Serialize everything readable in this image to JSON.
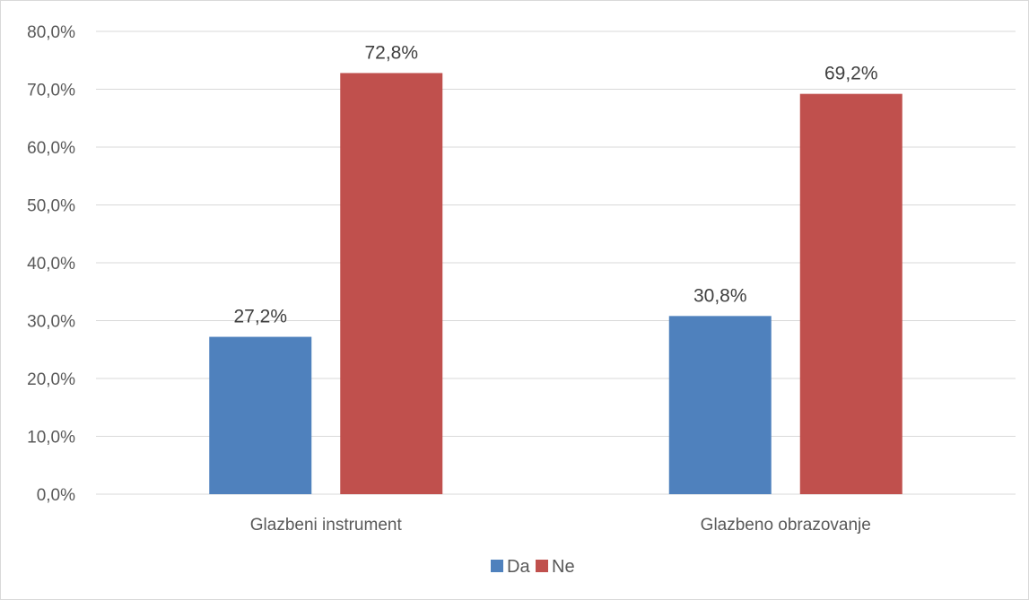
{
  "chart_data": {
    "type": "bar",
    "categories": [
      "Glazbeni instrument",
      "Glazbeno obrazovanje"
    ],
    "series": [
      {
        "name": "Da",
        "values": [
          27.2,
          30.8
        ],
        "labels": [
          "27,2%",
          "30,8%"
        ],
        "color": "#4f81bd"
      },
      {
        "name": "Ne",
        "values": [
          72.8,
          69.2
        ],
        "labels": [
          "72,8%",
          "69,2%"
        ],
        "color": "#c0504d"
      }
    ],
    "title": "",
    "xlabel": "",
    "ylabel": "",
    "ylim": [
      0,
      80
    ],
    "yticks": [
      0,
      10,
      20,
      30,
      40,
      50,
      60,
      70,
      80
    ],
    "ytick_labels": [
      "0,0%",
      "10,0%",
      "20,0%",
      "30,0%",
      "40,0%",
      "50,0%",
      "60,0%",
      "70,0%",
      "80,0%"
    ],
    "grid": true,
    "legend_position": "bottom"
  }
}
